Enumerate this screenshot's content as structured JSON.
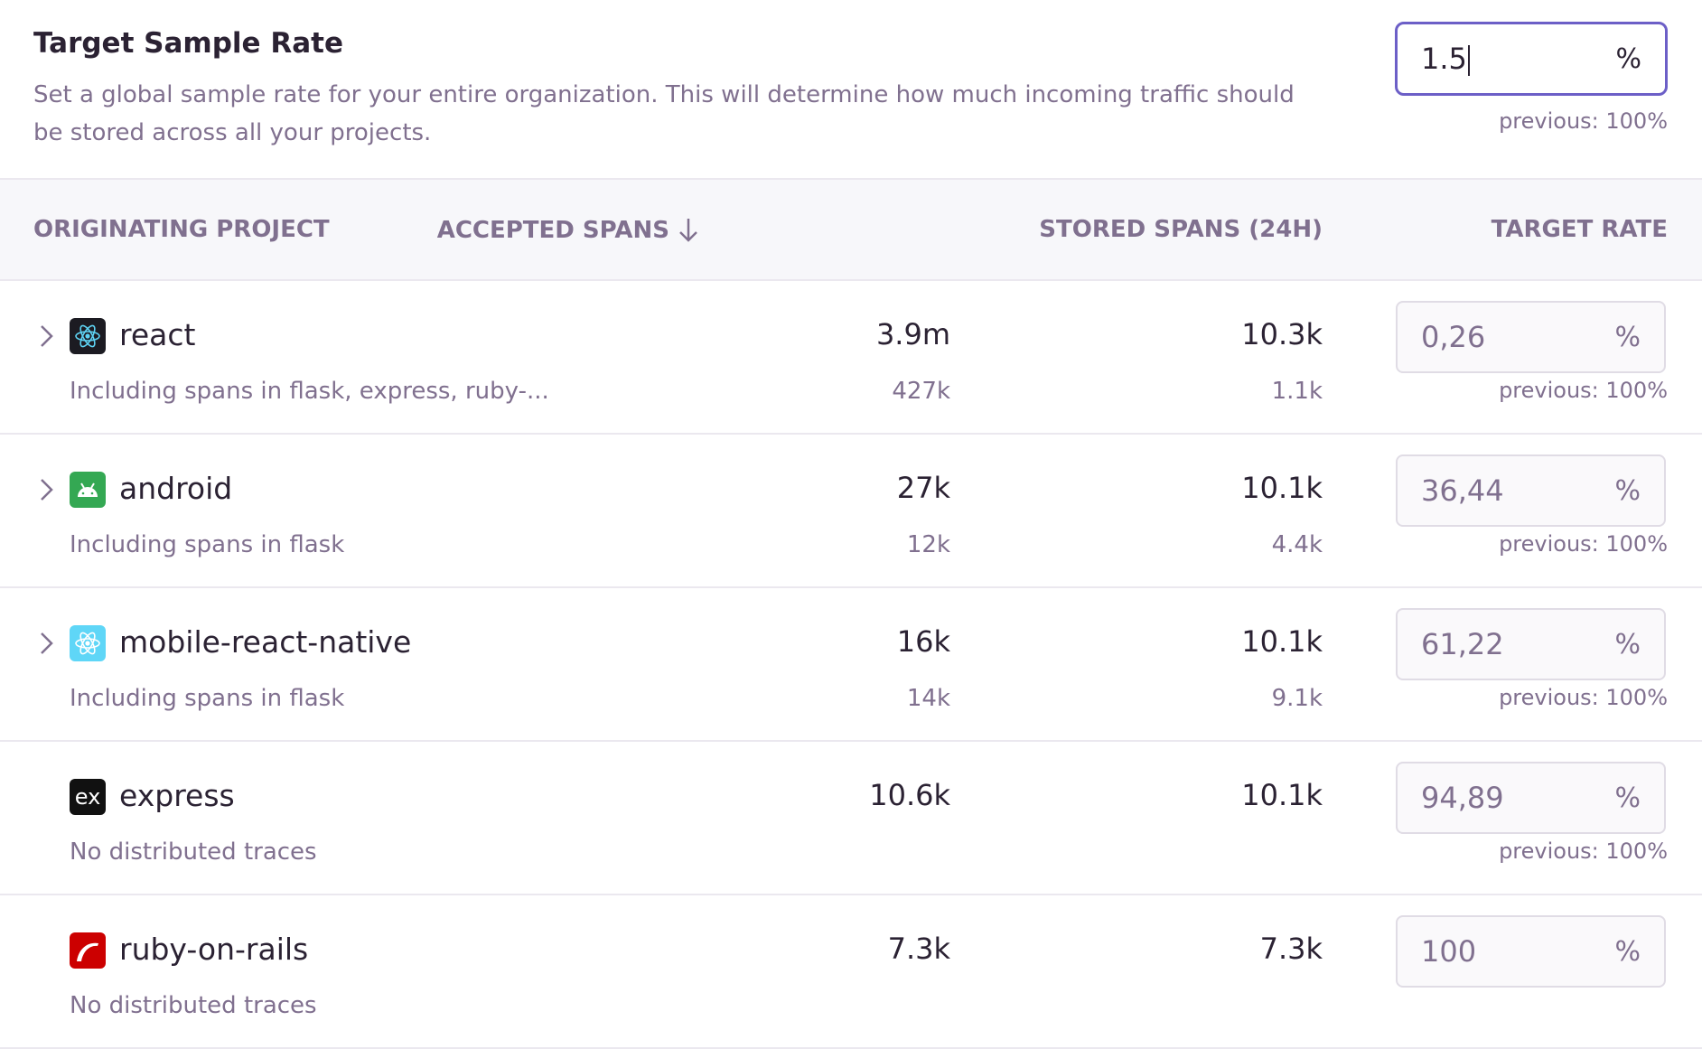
{
  "header": {
    "title": "Target Sample Rate",
    "description": "Set a global sample rate for your entire organization. This will determine how much incoming traffic should be stored across all your projects.",
    "rate_value": "1.5",
    "rate_unit": "%",
    "previous": "previous: 100%"
  },
  "table": {
    "columns": [
      "Originating Project",
      "Accepted Spans",
      "Stored Spans (24h)",
      "Target Rate"
    ],
    "sort_icon": "arrow-down-icon"
  },
  "rows": [
    {
      "name": "react",
      "icon": "react-icon",
      "expandable": true,
      "subtitle": "Including spans in flask, express, ruby-...",
      "accepted": "3.9m",
      "accepted_sub": "427k",
      "stored": "10.3k",
      "stored_sub": "1.1k",
      "rate": "0,26",
      "unit": "%",
      "previous": "previous: 100%"
    },
    {
      "name": "android",
      "icon": "android-icon",
      "expandable": true,
      "subtitle": "Including spans in flask",
      "accepted": "27k",
      "accepted_sub": "12k",
      "stored": "10.1k",
      "stored_sub": "4.4k",
      "rate": "36,44",
      "unit": "%",
      "previous": "previous: 100%"
    },
    {
      "name": "mobile-react-native",
      "icon": "react-native-icon",
      "expandable": true,
      "subtitle": "Including spans in flask",
      "accepted": "16k",
      "accepted_sub": "14k",
      "stored": "10.1k",
      "stored_sub": "9.1k",
      "rate": "61,22",
      "unit": "%",
      "previous": "previous: 100%"
    },
    {
      "name": "express",
      "icon": "express-icon",
      "expandable": false,
      "subtitle": "No distributed traces",
      "accepted": "10.6k",
      "stored": "10.1k",
      "rate": "94,89",
      "unit": "%",
      "previous": "previous: 100%"
    },
    {
      "name": "ruby-on-rails",
      "icon": "rails-icon",
      "expandable": false,
      "subtitle": "No distributed traces",
      "accepted": "7.3k",
      "stored": "7.3k",
      "rate": "100",
      "unit": "%"
    }
  ],
  "colors": {
    "accent": "#6c5fc7",
    "text": "#2b2233",
    "muted": "#80708f"
  }
}
